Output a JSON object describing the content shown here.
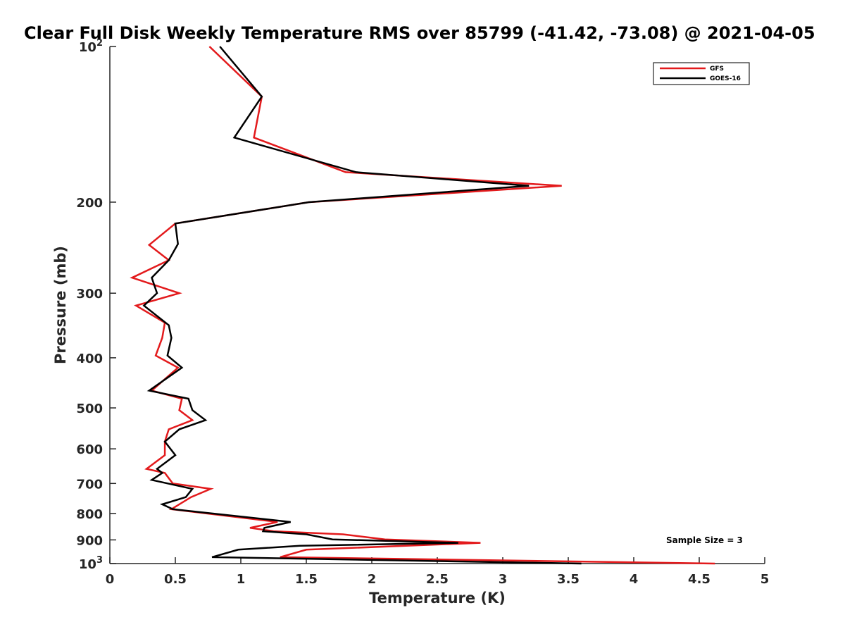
{
  "chart_data": {
    "type": "line",
    "title": "Clear Full Disk Weekly Temperature RMS over 85799 (-41.42, -73.08) @ 2021-04-05",
    "xlabel": "Temperature (K)",
    "ylabel": "Pressure (mb)",
    "xlim": [
      0,
      5
    ],
    "ylim": [
      100,
      1000
    ],
    "y_scale": "log",
    "y_reversed": true,
    "x_ticks": [
      0,
      0.5,
      1,
      1.5,
      2,
      2.5,
      3,
      3.5,
      4,
      4.5,
      5
    ],
    "x_tick_labels": [
      "0",
      "0.5",
      "1",
      "1.5",
      "2",
      "2.5",
      "3",
      "3.5",
      "4",
      "4.5",
      "5"
    ],
    "y_ticks": [
      100,
      200,
      300,
      400,
      500,
      600,
      700,
      800,
      900,
      1000
    ],
    "y_tick_labels": [
      "10²",
      "200",
      "300",
      "400",
      "500",
      "600",
      "700",
      "800",
      "900",
      "10³"
    ],
    "grid": false,
    "legend_position": "top-right",
    "annotation": "Sample Size = 3",
    "series": [
      {
        "name": "GFS",
        "color": "#e31a1c",
        "points": [
          [
            0.76,
            100
          ],
          [
            1.16,
            125
          ],
          [
            1.1,
            150
          ],
          [
            1.8,
            175
          ],
          [
            3.45,
            186
          ],
          [
            1.52,
            200
          ],
          [
            0.5,
            220
          ],
          [
            0.3,
            242
          ],
          [
            0.45,
            259
          ],
          [
            0.17,
            280
          ],
          [
            0.53,
            300
          ],
          [
            0.2,
            317
          ],
          [
            0.42,
            342
          ],
          [
            0.4,
            366
          ],
          [
            0.35,
            396
          ],
          [
            0.52,
            418
          ],
          [
            0.32,
            463
          ],
          [
            0.55,
            480
          ],
          [
            0.53,
            505
          ],
          [
            0.63,
            528
          ],
          [
            0.45,
            550
          ],
          [
            0.42,
            581
          ],
          [
            0.42,
            617
          ],
          [
            0.28,
            656
          ],
          [
            0.42,
            668
          ],
          [
            0.48,
            700
          ],
          [
            0.77,
            717
          ],
          [
            0.62,
            744
          ],
          [
            0.47,
            785
          ],
          [
            1.28,
            831
          ],
          [
            1.07,
            853
          ],
          [
            1.25,
            866
          ],
          [
            1.78,
            878
          ],
          [
            2.1,
            898
          ],
          [
            2.83,
            912
          ],
          [
            1.5,
            940
          ],
          [
            1.3,
            972
          ],
          [
            4.62,
            1000
          ]
        ]
      },
      {
        "name": "GOES-16",
        "color": "#000000",
        "points": [
          [
            0.84,
            100
          ],
          [
            1.16,
            125
          ],
          [
            0.95,
            150
          ],
          [
            1.88,
            175
          ],
          [
            3.2,
            186
          ],
          [
            1.52,
            200
          ],
          [
            0.5,
            220
          ],
          [
            0.52,
            241
          ],
          [
            0.45,
            259
          ],
          [
            0.32,
            280
          ],
          [
            0.36,
            300
          ],
          [
            0.26,
            317
          ],
          [
            0.45,
            346
          ],
          [
            0.47,
            366
          ],
          [
            0.44,
            396
          ],
          [
            0.55,
            418
          ],
          [
            0.3,
            463
          ],
          [
            0.6,
            480
          ],
          [
            0.63,
            505
          ],
          [
            0.73,
            528
          ],
          [
            0.53,
            550
          ],
          [
            0.42,
            581
          ],
          [
            0.5,
            617
          ],
          [
            0.36,
            656
          ],
          [
            0.4,
            668
          ],
          [
            0.32,
            689
          ],
          [
            0.63,
            717
          ],
          [
            0.58,
            744
          ],
          [
            0.4,
            768
          ],
          [
            0.48,
            785
          ],
          [
            1.38,
            831
          ],
          [
            1.18,
            853
          ],
          [
            1.17,
            866
          ],
          [
            1.5,
            878
          ],
          [
            1.7,
            898
          ],
          [
            2.66,
            912
          ],
          [
            1.45,
            924
          ],
          [
            0.98,
            940
          ],
          [
            0.78,
            972
          ],
          [
            3.6,
            1000
          ]
        ]
      }
    ]
  }
}
